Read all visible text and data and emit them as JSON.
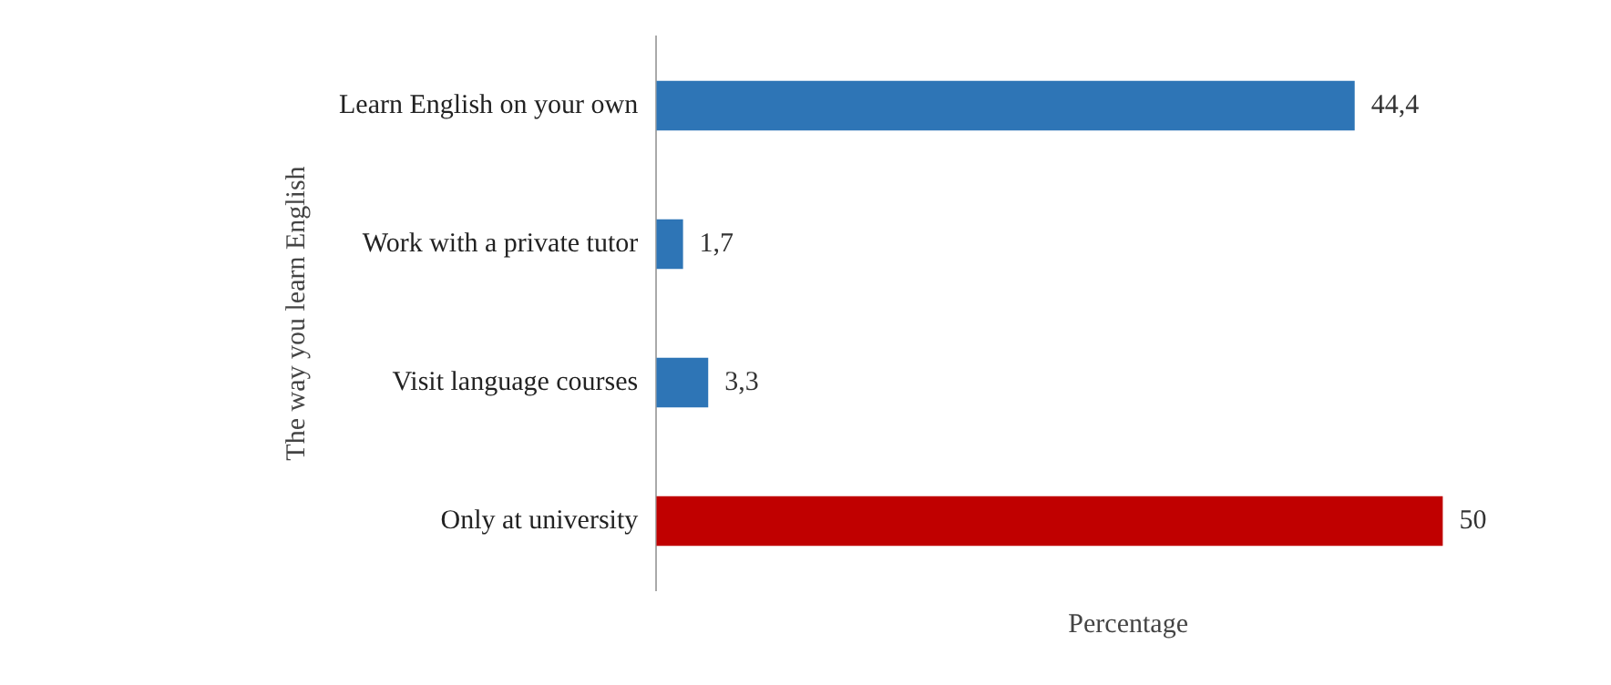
{
  "chart_data": {
    "type": "bar",
    "orientation": "horizontal",
    "xlabel": "Percentage",
    "ylabel": "The way you learn English",
    "categories": [
      "Learn English on your own",
      "Work with a private tutor",
      "Visit language courses",
      "Only at university"
    ],
    "values": [
      44.4,
      1.7,
      3.3,
      50
    ],
    "colors": [
      "#2e75b6",
      "#2e75b6",
      "#2e75b6",
      "#c00000"
    ],
    "value_labels": [
      "44,4",
      "1,7",
      "3,3",
      "50"
    ],
    "grid": false,
    "legend": false
  }
}
